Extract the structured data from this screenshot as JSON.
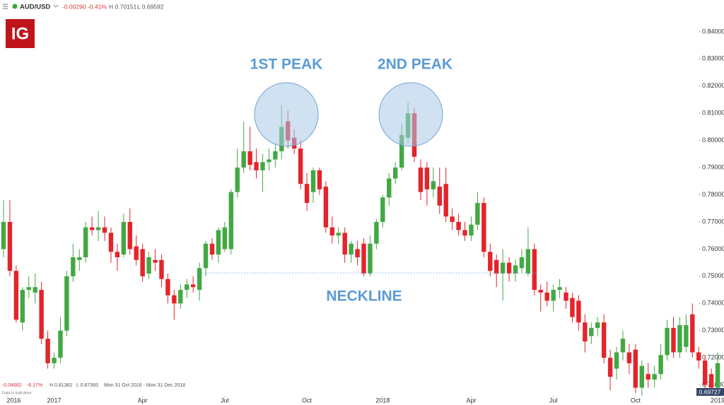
{
  "header": {
    "symbol": "AUD/USD",
    "change": "-0.00290",
    "change_pct": "-0.41%",
    "high": "H 0.70151",
    "low": "L 0.69592"
  },
  "footer": {
    "change": "-0.04682",
    "change_pct": "-6.17%",
    "high": "H 0.81362",
    "low": "L 0.67393",
    "range": "Mon 31 Oct 2016 - Mon 31 Dec 2018",
    "note": "Data is indicative"
  },
  "logo": "IG",
  "last_price": "0.69727",
  "chart_data": {
    "type": "candlestick",
    "up_color": "#43a843",
    "down_color": "#e3242b",
    "annotations": [
      {
        "text": "1ST PEAK"
      },
      {
        "text": "2ND PEAK"
      }
    ],
    "neckline": {
      "text": "NECKLINE",
      "level": 0.7512
    },
    "xlim": [
      -0.56,
      114
    ],
    "xticks": [
      {
        "value": 0.5,
        "label": "2016"
      },
      {
        "value": 8,
        "label": "2017"
      },
      {
        "value": 22,
        "label": "Apr"
      },
      {
        "value": 35,
        "label": "Jul"
      },
      {
        "value": 48,
        "label": "Oct"
      },
      {
        "value": 60,
        "label": "2018"
      },
      {
        "value": 74,
        "label": "Apr"
      },
      {
        "value": 87,
        "label": "Jul"
      },
      {
        "value": 100,
        "label": "Oct"
      },
      {
        "value": 113,
        "label": "2019"
      }
    ],
    "ylim": [
      0.706,
      0.847
    ],
    "yticks": [
      {
        "value": 0.71,
        "label": "0.71000"
      },
      {
        "value": 0.72,
        "label": "0.72000"
      },
      {
        "value": 0.73,
        "label": "0.73000"
      },
      {
        "value": 0.74,
        "label": "0.74000"
      },
      {
        "value": 0.75,
        "label": "0.75000"
      },
      {
        "value": 0.76,
        "label": "0.76000"
      },
      {
        "value": 0.77,
        "label": "0.77000"
      },
      {
        "value": 0.78,
        "label": "0.78000"
      },
      {
        "value": 0.79,
        "label": "0.79000"
      },
      {
        "value": 0.8,
        "label": "0.80000"
      },
      {
        "value": 0.81,
        "label": "0.81000"
      },
      {
        "value": 0.82,
        "label": "0.82000"
      },
      {
        "value": 0.83,
        "label": "0.83000"
      },
      {
        "value": 0.84,
        "label": "0.84000"
      }
    ],
    "x": [
      0,
      1,
      2,
      3,
      4,
      5,
      6,
      7,
      8,
      9,
      10,
      11,
      12,
      13,
      14,
      15,
      16,
      17,
      18,
      19,
      20,
      21,
      22,
      23,
      24,
      25,
      26,
      27,
      28,
      29,
      30,
      31,
      32,
      33,
      34,
      35,
      36,
      37,
      38,
      39,
      40,
      41,
      42,
      43,
      44,
      45,
      46,
      47,
      48,
      49,
      50,
      51,
      52,
      53,
      54,
      55,
      56,
      57,
      58,
      59,
      60,
      61,
      62,
      63,
      64,
      65,
      66,
      67,
      68,
      69,
      70,
      71,
      72,
      73,
      74,
      75,
      76,
      77,
      78,
      79,
      80,
      81,
      82,
      83,
      84,
      85,
      86,
      87,
      88,
      89,
      90,
      91,
      92,
      93,
      94,
      95,
      96,
      97,
      98,
      99,
      100,
      101,
      102,
      103,
      104,
      105,
      106,
      107,
      108,
      109,
      110,
      111,
      112,
      113
    ],
    "open": [
      0.76,
      0.77,
      0.752,
      0.733,
      0.745,
      0.744,
      0.745,
      0.727,
      0.718,
      0.72,
      0.73,
      0.75,
      0.756,
      0.757,
      0.768,
      0.767,
      0.768,
      0.766,
      0.759,
      0.758,
      0.77,
      0.761,
      0.76,
      0.751,
      0.756,
      0.756,
      0.749,
      0.743,
      0.74,
      0.745,
      0.747,
      0.745,
      0.753,
      0.762,
      0.758,
      0.76,
      0.76,
      0.781,
      0.79,
      0.796,
      0.792,
      0.789,
      0.792,
      0.793,
      0.796,
      0.807,
      0.801,
      0.797,
      0.784,
      0.781,
      0.789,
      0.783,
      0.768,
      0.765,
      0.766,
      0.758,
      0.76,
      0.762,
      0.751,
      0.762,
      0.77,
      0.779,
      0.786,
      0.79,
      0.801,
      0.81,
      0.79,
      0.79,
      0.782,
      0.783,
      0.784,
      0.772,
      0.77,
      0.767,
      0.765,
      0.769,
      0.777,
      0.759,
      0.756,
      0.751,
      0.755,
      0.751,
      0.753,
      0.751,
      0.76,
      0.745,
      0.744,
      0.741,
      0.745,
      0.744,
      0.742,
      0.741,
      0.733,
      0.728,
      0.731,
      0.733,
      0.72,
      0.716,
      0.722,
      0.722,
      0.723,
      0.709,
      0.714,
      0.712,
      0.714,
      0.721,
      0.731,
      0.722,
      0.724,
      0.736,
      0.722,
      0.719,
      0.714,
      0.709
    ],
    "high": [
      0.778,
      0.778,
      0.754,
      0.746,
      0.75,
      0.751,
      0.748,
      0.73,
      0.722,
      0.735,
      0.752,
      0.762,
      0.76,
      0.77,
      0.772,
      0.774,
      0.772,
      0.768,
      0.762,
      0.773,
      0.775,
      0.765,
      0.762,
      0.759,
      0.76,
      0.758,
      0.751,
      0.745,
      0.747,
      0.749,
      0.75,
      0.755,
      0.763,
      0.764,
      0.768,
      0.77,
      0.782,
      0.797,
      0.807,
      0.805,
      0.797,
      0.795,
      0.797,
      0.799,
      0.813,
      0.811,
      0.804,
      0.8,
      0.788,
      0.79,
      0.79,
      0.785,
      0.772,
      0.768,
      0.768,
      0.763,
      0.763,
      0.764,
      0.765,
      0.771,
      0.78,
      0.788,
      0.792,
      0.806,
      0.814,
      0.812,
      0.793,
      0.792,
      0.79,
      0.79,
      0.79,
      0.775,
      0.773,
      0.77,
      0.772,
      0.781,
      0.779,
      0.762,
      0.758,
      0.76,
      0.757,
      0.756,
      0.76,
      0.768,
      0.762,
      0.747,
      0.748,
      0.747,
      0.749,
      0.746,
      0.744,
      0.743,
      0.736,
      0.733,
      0.735,
      0.736,
      0.723,
      0.724,
      0.73,
      0.725,
      0.725,
      0.719,
      0.718,
      0.717,
      0.725,
      0.734,
      0.735,
      0.735,
      0.736,
      0.74,
      0.724,
      0.721,
      0.716,
      0.722
    ],
    "low": [
      0.757,
      0.75,
      0.733,
      0.73,
      0.742,
      0.74,
      0.725,
      0.716,
      0.716,
      0.718,
      0.728,
      0.748,
      0.752,
      0.755,
      0.765,
      0.763,
      0.763,
      0.755,
      0.752,
      0.757,
      0.758,
      0.754,
      0.748,
      0.749,
      0.752,
      0.746,
      0.74,
      0.734,
      0.738,
      0.742,
      0.744,
      0.741,
      0.75,
      0.756,
      0.755,
      0.759,
      0.758,
      0.779,
      0.788,
      0.789,
      0.786,
      0.781,
      0.789,
      0.79,
      0.793,
      0.797,
      0.795,
      0.782,
      0.774,
      0.777,
      0.78,
      0.766,
      0.762,
      0.762,
      0.755,
      0.755,
      0.754,
      0.75,
      0.75,
      0.76,
      0.768,
      0.776,
      0.784,
      0.789,
      0.799,
      0.792,
      0.778,
      0.776,
      0.779,
      0.773,
      0.77,
      0.767,
      0.765,
      0.763,
      0.763,
      0.767,
      0.757,
      0.75,
      0.746,
      0.741,
      0.748,
      0.748,
      0.751,
      0.75,
      0.743,
      0.737,
      0.739,
      0.737,
      0.742,
      0.738,
      0.733,
      0.73,
      0.722,
      0.725,
      0.728,
      0.718,
      0.708,
      0.712,
      0.719,
      0.714,
      0.707,
      0.706,
      0.709,
      0.709,
      0.712,
      0.719,
      0.72,
      0.72,
      0.722,
      0.72,
      0.716,
      0.708,
      0.707,
      0.708
    ],
    "close": [
      0.77,
      0.752,
      0.734,
      0.745,
      0.746,
      0.746,
      0.727,
      0.718,
      0.72,
      0.73,
      0.75,
      0.757,
      0.757,
      0.768,
      0.767,
      0.768,
      0.766,
      0.759,
      0.757,
      0.77,
      0.76,
      0.756,
      0.75,
      0.757,
      0.755,
      0.749,
      0.743,
      0.74,
      0.745,
      0.747,
      0.746,
      0.753,
      0.762,
      0.758,
      0.767,
      0.768,
      0.781,
      0.79,
      0.796,
      0.791,
      0.789,
      0.792,
      0.793,
      0.796,
      0.805,
      0.8,
      0.797,
      0.784,
      0.777,
      0.789,
      0.782,
      0.768,
      0.765,
      0.766,
      0.758,
      0.762,
      0.757,
      0.751,
      0.762,
      0.77,
      0.779,
      0.786,
      0.79,
      0.802,
      0.81,
      0.794,
      0.781,
      0.782,
      0.785,
      0.776,
      0.772,
      0.77,
      0.767,
      0.765,
      0.769,
      0.777,
      0.759,
      0.752,
      0.751,
      0.755,
      0.751,
      0.754,
      0.757,
      0.76,
      0.745,
      0.744,
      0.741,
      0.745,
      0.746,
      0.741,
      0.735,
      0.733,
      0.726,
      0.731,
      0.733,
      0.72,
      0.713,
      0.722,
      0.727,
      0.718,
      0.709,
      0.717,
      0.712,
      0.714,
      0.721,
      0.731,
      0.722,
      0.732,
      0.732,
      0.722,
      0.719,
      0.71,
      0.709,
      0.718
    ]
  }
}
